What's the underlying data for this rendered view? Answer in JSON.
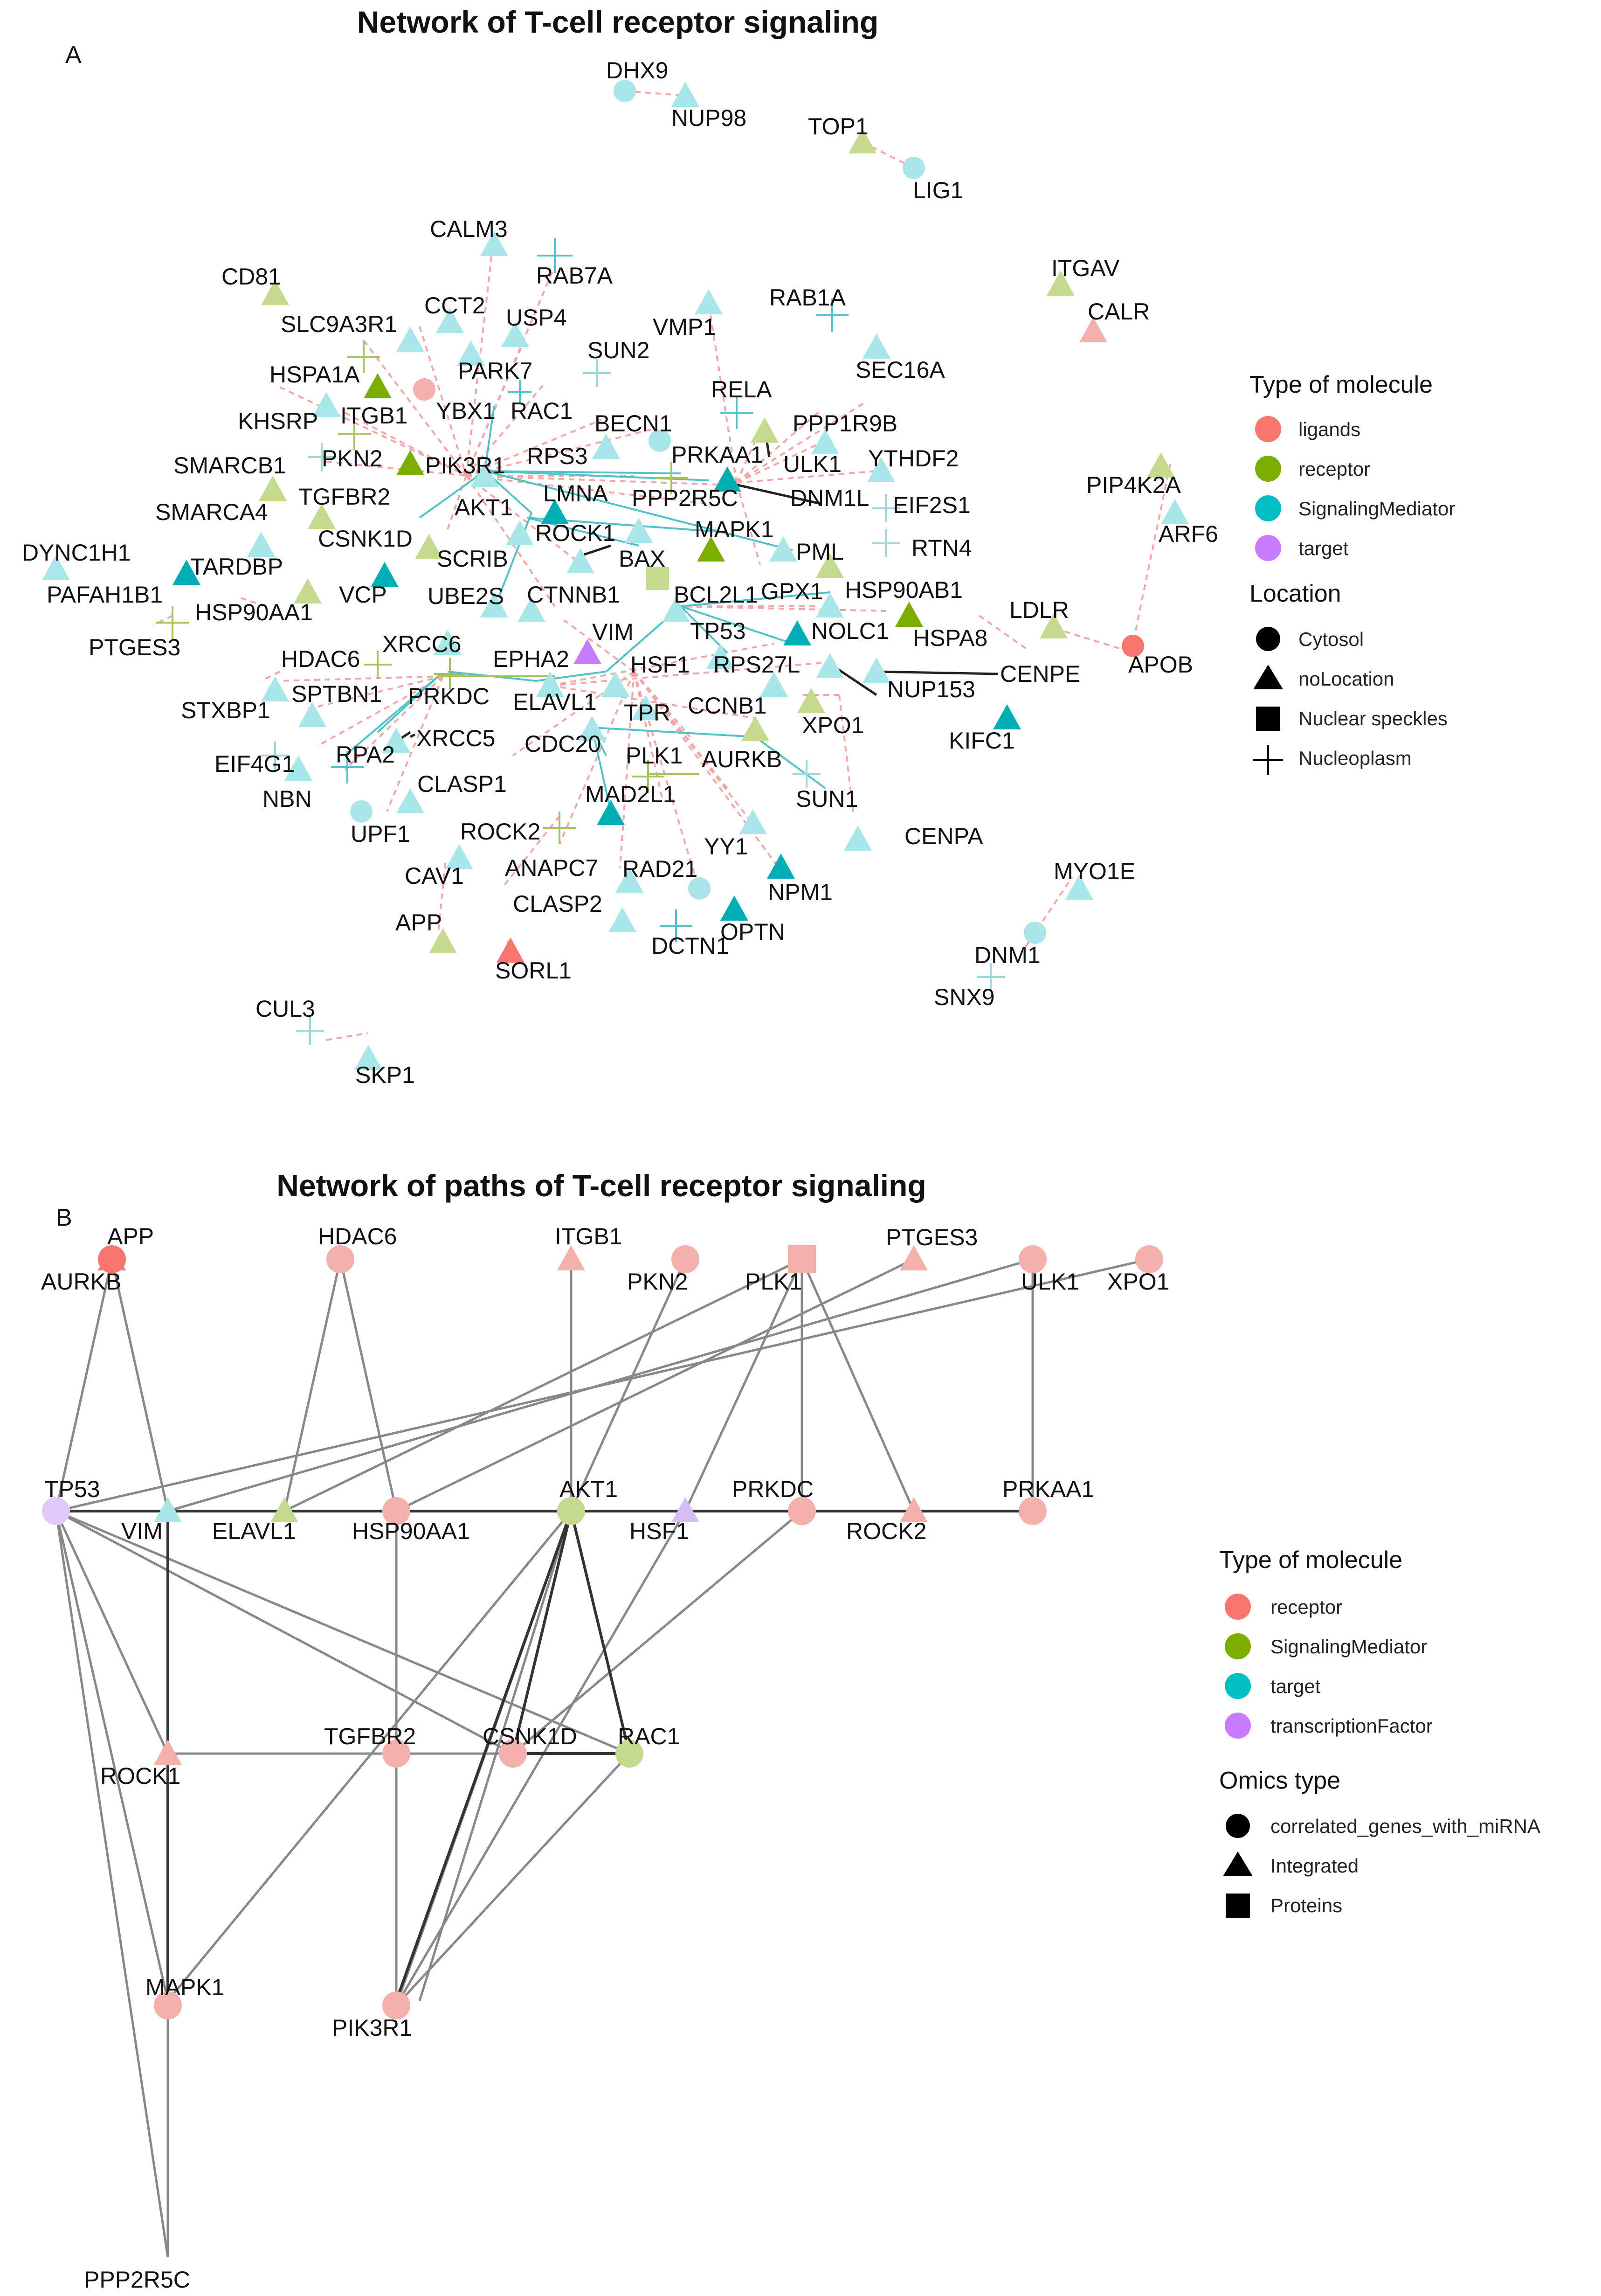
{
  "colors": {
    "ligands": "#f8766d",
    "receptor_a": "#7cae00",
    "signaling_a": "#00bfc4",
    "target_a": "#c77cff",
    "receptor_b": "#f8766d",
    "signaling_b": "#7cae00",
    "target_b": "#00bfc4",
    "tf_b": "#c77cff",
    "edge_dashed": "#f4a6a6",
    "edge_teal": "#4fc3c7",
    "edge_black": "#222222",
    "edge_olive": "#a6c25a",
    "edge_gray": "#888888"
  },
  "panel_a": {
    "letter": "A",
    "title": "Network of T-cell receptor signaling",
    "legend": {
      "type_title": "Type of molecule",
      "types": [
        {
          "label": "ligands",
          "color": "#f8766d"
        },
        {
          "label": "receptor",
          "color": "#7cae00"
        },
        {
          "label": "SignalingMediator",
          "color": "#00bfc4"
        },
        {
          "label": "target",
          "color": "#c77cff"
        }
      ],
      "location_title": "Location",
      "locations": [
        {
          "label": "Cytosol",
          "shape": "circle"
        },
        {
          "label": "noLocation",
          "shape": "triangle"
        },
        {
          "label": "Nuclear speckles",
          "shape": "square"
        },
        {
          "label": "Nucleoplasm",
          "shape": "plus"
        }
      ]
    }
  },
  "panel_b": {
    "letter": "B",
    "title": "Network of paths of T-cell receptor signaling",
    "legend": {
      "type_title": "Type of molecule",
      "types": [
        {
          "label": "receptor",
          "color": "#f8766d"
        },
        {
          "label": "SignalingMediator",
          "color": "#7cae00"
        },
        {
          "label": "target",
          "color": "#00bfc4"
        },
        {
          "label": "transcriptionFactor",
          "color": "#c77cff"
        }
      ],
      "omics_title": "Omics type",
      "omics": [
        {
          "label": "correlated_genes_with_miRNA",
          "shape": "circle"
        },
        {
          "label": "Integrated",
          "shape": "triangle"
        },
        {
          "label": "Proteins",
          "shape": "square"
        }
      ]
    }
  }
}
